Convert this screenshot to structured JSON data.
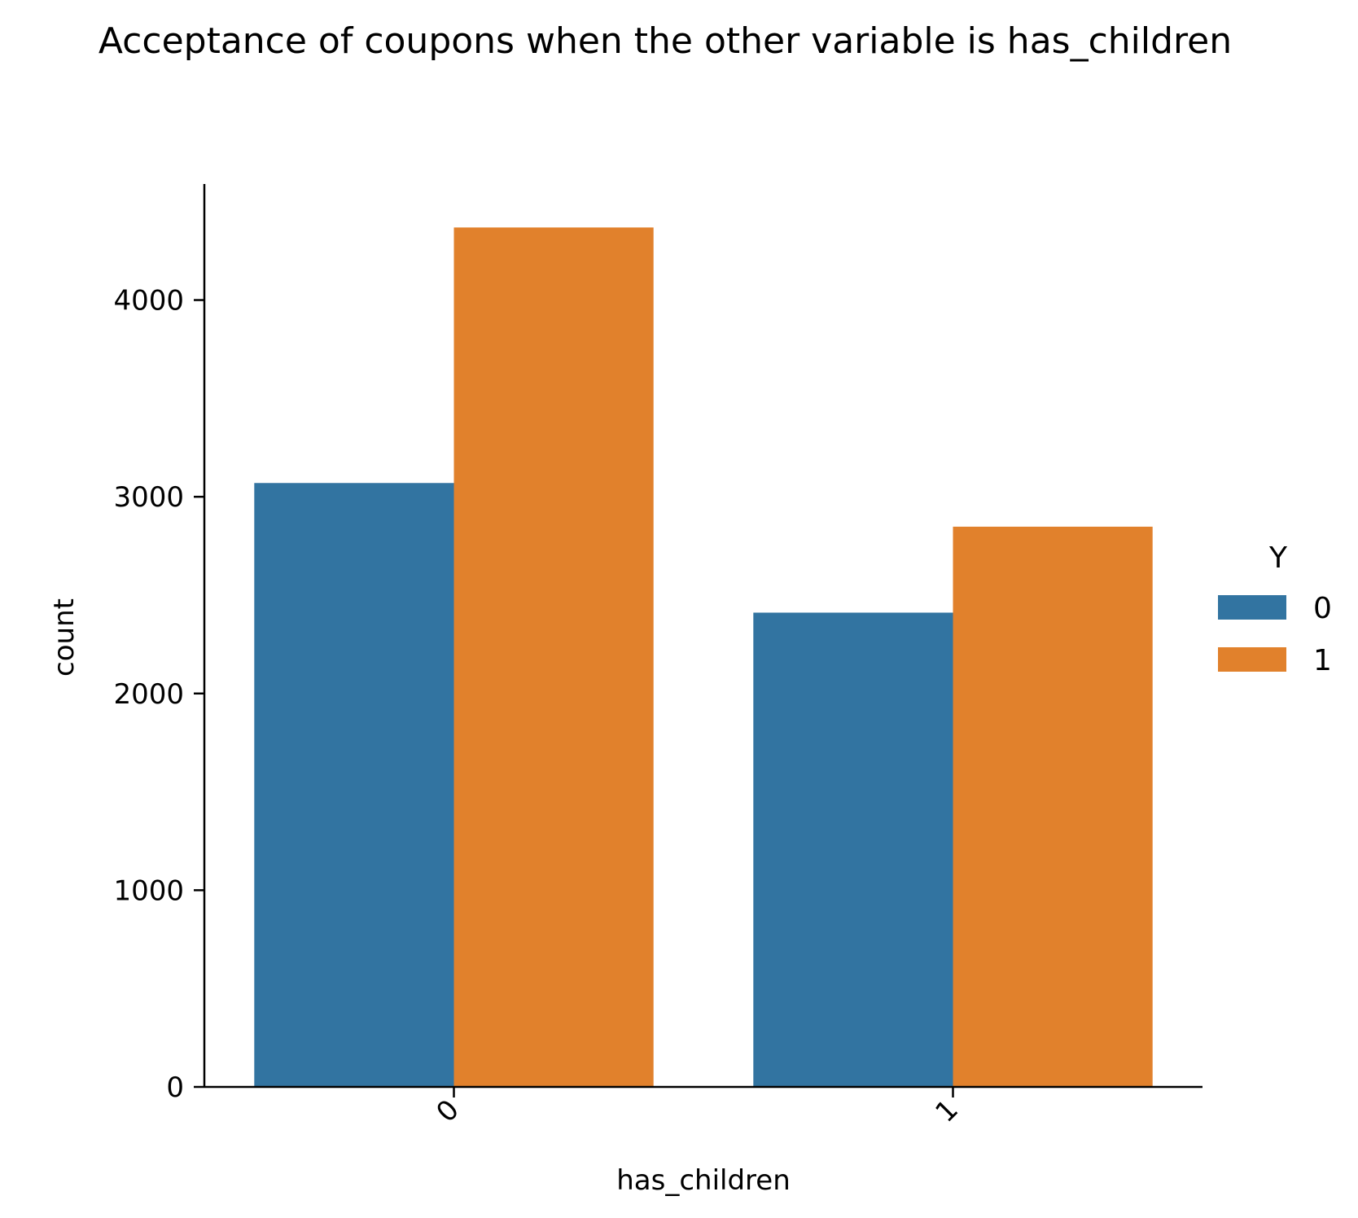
{
  "chart_data": {
    "type": "bar",
    "title": "Acceptance of coupons when the other variable is has_children",
    "xlabel": "has_children",
    "ylabel": "count",
    "categories": [
      "0",
      "1"
    ],
    "series": [
      {
        "name": "0",
        "values": [
          3070,
          2411
        ],
        "color": "#3274a1"
      },
      {
        "name": "1",
        "values": [
          4369,
          2848
        ],
        "color": "#e1812c"
      }
    ],
    "ylim": [
      0,
      4590
    ],
    "yticks": [
      0,
      1000,
      2000,
      3000,
      4000
    ],
    "ytick_labels": [
      "0",
      "1000",
      "2000",
      "3000",
      "4000"
    ],
    "legend": {
      "title": "Y",
      "placement": "right",
      "entries": [
        "0",
        "1"
      ]
    },
    "grid": false
  }
}
